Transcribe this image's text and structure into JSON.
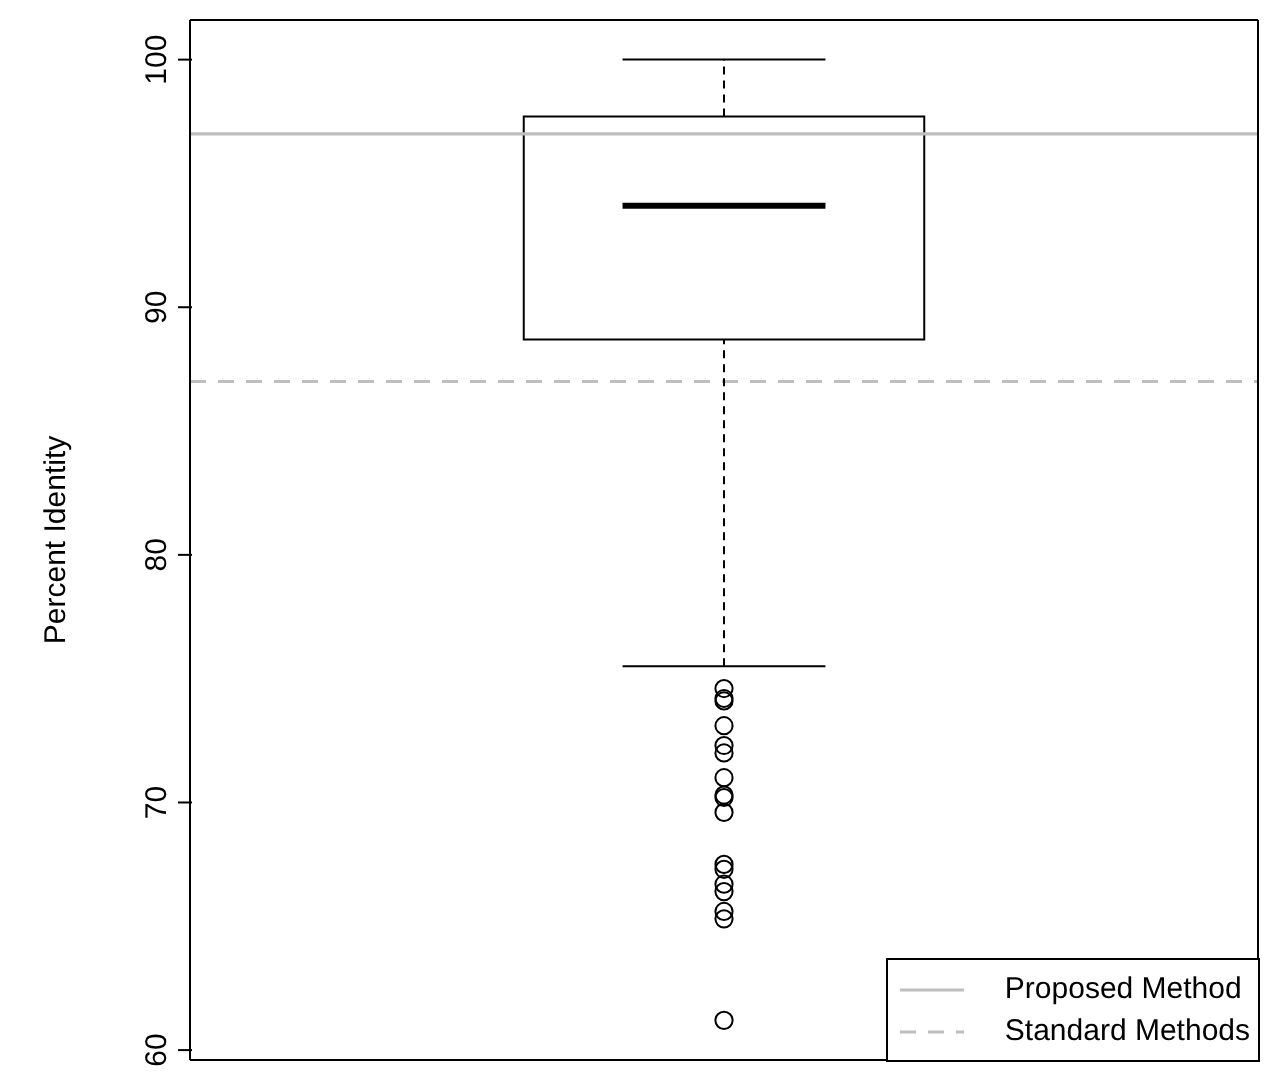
{
  "chart_data": {
    "type": "box",
    "ylabel": "Percent Identity",
    "categories": [
      null
    ],
    "boxes": [
      {
        "low": 75.5,
        "q1": 88.7,
        "median": 94.1,
        "q3": 97.7,
        "high": 100,
        "outliers": [
          74.6,
          74.2,
          74.1,
          73.1,
          72.3,
          72.0,
          71.0,
          70.3,
          70.2,
          69.6,
          67.5,
          67.3,
          66.7,
          66.4,
          65.6,
          65.3,
          61.2
        ]
      }
    ],
    "ylim": [
      59.6,
      101.6
    ],
    "yticks": [
      60,
      70,
      80,
      90,
      100
    ],
    "tick_labels": "y",
    "ref_lines": [
      {
        "axis": "y",
        "value": 97,
        "label": "Proposed Method",
        "color": "#bebebe",
        "line_style": "solid"
      },
      {
        "axis": "y",
        "value": 87,
        "label": "Standard Methods",
        "color": "#bebebe",
        "line_style": "dashed"
      }
    ],
    "legend": "bottom right"
  }
}
